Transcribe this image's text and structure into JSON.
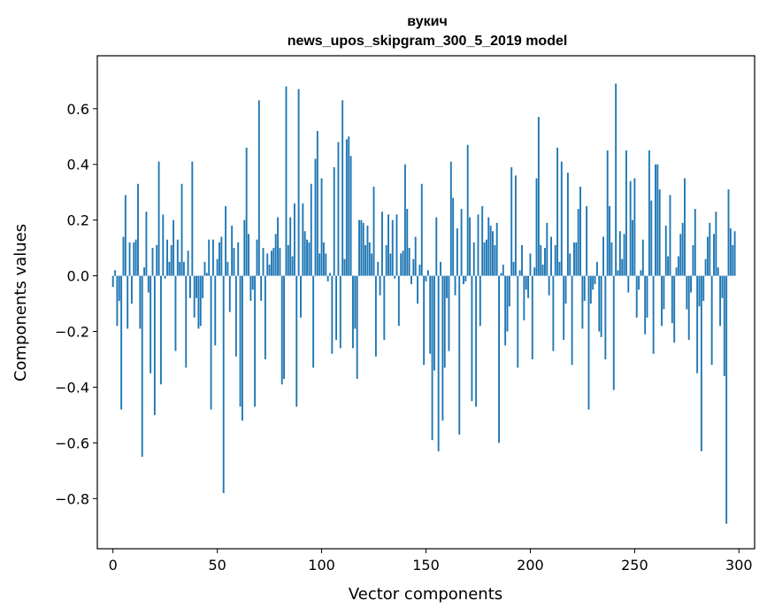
{
  "chart_data": {
    "type": "bar",
    "title": "вукич",
    "subtitle": "news_upos_skipgram_300_5_2019 model",
    "xlabel": "Vector components",
    "ylabel": "Components values",
    "xlim": [
      -7.5,
      307.5
    ],
    "ylim": [
      -0.98,
      0.79
    ],
    "xticks": [
      0,
      50,
      100,
      150,
      200,
      250,
      300
    ],
    "yticks": [
      -0.8,
      -0.6,
      -0.4,
      -0.2,
      0.0,
      0.2,
      0.4,
      0.6
    ],
    "ytick_labels": [
      "−0.8",
      "−0.6",
      "−0.4",
      "−0.2",
      "0.0",
      "0.2",
      "0.4",
      "0.6"
    ],
    "bar_color": "#1f77b4",
    "grid": false,
    "values": [
      -0.04,
      0.02,
      -0.18,
      -0.09,
      -0.48,
      0.14,
      0.29,
      -0.19,
      0.12,
      -0.1,
      0.12,
      0.13,
      0.33,
      -0.19,
      -0.65,
      0.03,
      0.23,
      -0.06,
      -0.35,
      0.1,
      -0.5,
      0.11,
      0.41,
      -0.39,
      0.22,
      -0.01,
      0.13,
      0.05,
      0.11,
      0.2,
      -0.27,
      0.13,
      0.05,
      0.33,
      0.05,
      -0.33,
      0.09,
      -0.08,
      0.41,
      -0.15,
      -0.08,
      -0.19,
      -0.18,
      -0.08,
      0.05,
      0.01,
      0.13,
      -0.48,
      0.13,
      -0.25,
      0.06,
      0.12,
      0.14,
      -0.78,
      0.25,
      0.05,
      -0.13,
      0.18,
      0.1,
      -0.29,
      0.12,
      -0.47,
      -0.52,
      0.2,
      0.46,
      0.15,
      -0.09,
      -0.05,
      -0.47,
      0.13,
      0.63,
      -0.09,
      0.1,
      -0.3,
      0.08,
      0.04,
      0.09,
      0.1,
      0.15,
      0.21,
      0.1,
      -0.39,
      -0.37,
      0.68,
      0.11,
      0.21,
      0.07,
      0.26,
      -0.47,
      0.67,
      -0.15,
      0.26,
      0.16,
      0.13,
      0.12,
      0.33,
      -0.33,
      0.42,
      0.52,
      0.08,
      0.35,
      0.12,
      0.08,
      -0.02,
      0.01,
      -0.28,
      0.39,
      -0.23,
      0.48,
      -0.26,
      0.63,
      0.06,
      0.49,
      0.5,
      0.43,
      -0.26,
      -0.19,
      -0.37,
      0.2,
      0.2,
      0.19,
      0.11,
      0.18,
      0.12,
      0.08,
      0.32,
      -0.29,
      0.05,
      -0.07,
      0.23,
      -0.23,
      0.11,
      0.22,
      0.08,
      0.2,
      -0.01,
      0.22,
      -0.18,
      0.08,
      0.09,
      0.4,
      0.24,
      0.1,
      -0.03,
      0.06,
      0.14,
      -0.1,
      0.04,
      0.33,
      -0.32,
      -0.02,
      0.02,
      -0.28,
      -0.59,
      -0.34,
      0.21,
      -0.63,
      0.05,
      -0.52,
      -0.33,
      -0.08,
      -0.27,
      0.41,
      0.28,
      -0.07,
      0.17,
      -0.57,
      0.24,
      -0.03,
      -0.02,
      0.47,
      0.21,
      -0.45,
      0.12,
      -0.47,
      0.22,
      -0.18,
      0.25,
      0.12,
      0.13,
      0.21,
      0.18,
      0.16,
      0.11,
      0.19,
      -0.6,
      0.01,
      0.04,
      -0.25,
      -0.2,
      -0.11,
      0.39,
      0.05,
      0.36,
      -0.33,
      0.02,
      0.11,
      -0.16,
      -0.05,
      -0.08,
      0.08,
      -0.3,
      0.03,
      0.35,
      0.57,
      0.11,
      0.04,
      0.1,
      0.19,
      -0.07,
      0.14,
      -0.27,
      0.11,
      0.46,
      0.05,
      0.41,
      -0.23,
      -0.1,
      0.37,
      0.08,
      -0.32,
      0.12,
      0.12,
      0.24,
      0.32,
      -0.19,
      -0.09,
      0.25,
      -0.48,
      -0.1,
      -0.05,
      -0.03,
      0.05,
      -0.2,
      -0.22,
      0.14,
      -0.3,
      0.45,
      0.25,
      0.12,
      -0.41,
      0.69,
      0.02,
      0.16,
      0.06,
      0.15,
      0.45,
      -0.06,
      0.34,
      0.2,
      0.35,
      -0.15,
      -0.05,
      0.02,
      0.13,
      -0.21,
      -0.15,
      0.45,
      0.27,
      -0.28,
      0.4,
      0.4,
      0.31,
      -0.18,
      -0.12,
      0.18,
      0.07,
      0.29,
      -0.17,
      -0.24,
      0.03,
      0.07,
      0.15,
      0.19,
      0.35,
      -0.12,
      -0.23,
      -0.06,
      0.11,
      0.24,
      -0.35,
      -0.11,
      -0.63,
      -0.09,
      0.06,
      0.14,
      0.19,
      -0.32,
      0.15,
      0.23,
      0.03,
      -0.18,
      -0.08,
      -0.36,
      -0.89,
      0.31,
      0.17,
      0.11,
      0.16
    ]
  }
}
